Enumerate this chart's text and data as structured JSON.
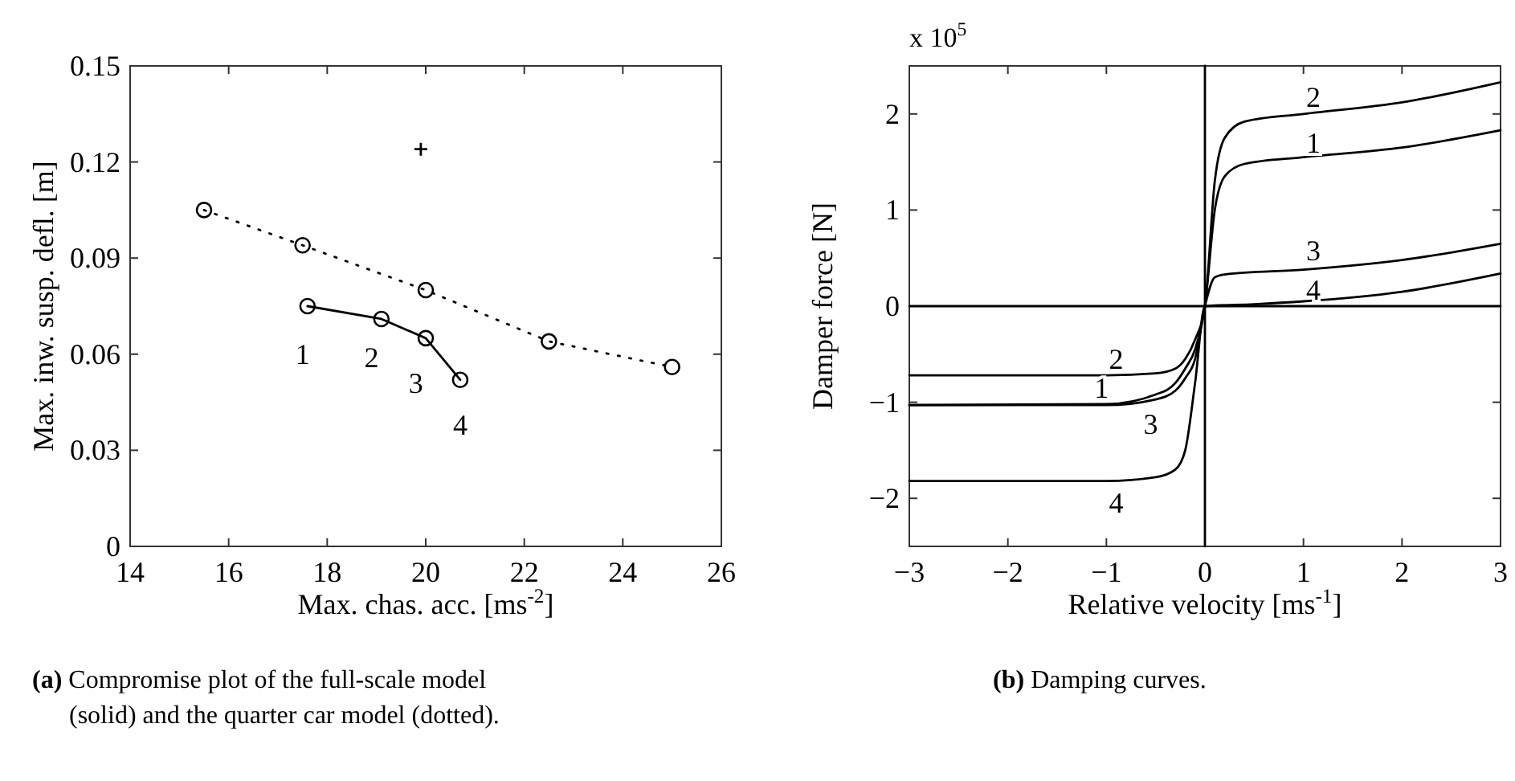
{
  "chart_data": [
    {
      "type": "line",
      "xlabel": "Max. chas. acc. [ms$^{-2}$]",
      "ylabel": "Max. inw. susp. defl. [m]",
      "xlim": [
        14,
        26
      ],
      "xticks": [
        14,
        16,
        18,
        20,
        22,
        24,
        26
      ],
      "ylim": [
        0,
        0.15
      ],
      "yticks": [
        0,
        0.03,
        0.06,
        0.09,
        0.12,
        0.15
      ],
      "grid": false,
      "series": [
        {
          "color": "#000000",
          "line_style": "solid",
          "marker": "circle",
          "x": [
            17.6,
            19.1,
            20,
            20.7
          ],
          "values": [
            0.075,
            0.071,
            0.065,
            0.052
          ]
        },
        {
          "color": "#000000",
          "line_style": "dotted",
          "marker": "circle",
          "x": [
            15.5,
            17.5,
            20,
            22.5,
            25
          ],
          "values": [
            0.105,
            0.094,
            0.08,
            0.064,
            0.056
          ]
        },
        {
          "type": "scatter",
          "color": "#000000",
          "marker": "cross",
          "x": [
            19.9
          ],
          "values": [
            0.124
          ]
        }
      ],
      "annotations": [
        "1",
        "2",
        "3",
        "4",
        "(a) Compromise plot of the full-scale model (solid) and the quarter car model (dotted)."
      ]
    },
    {
      "type": "line",
      "xlabel": "Relative velocity [ms$^{-1}$]",
      "ylabel": "Damper force [N]",
      "xlim": [
        -3,
        3
      ],
      "xticks": [
        {
          "value": -3,
          "label": "−3"
        },
        {
          "value": -2,
          "label": "−2"
        },
        {
          "value": -1,
          "label": "−1"
        },
        0,
        1,
        2,
        3
      ],
      "ylim": [
        -2.5,
        2.5
      ],
      "yticks": [
        {
          "value": -2,
          "label": "−2"
        },
        {
          "value": -1,
          "label": "−1"
        },
        0,
        1,
        2
      ],
      "grid": false,
      "series": [
        {
          "color": "#000000",
          "x": [
            -3,
            -1,
            -0.5,
            -0.3,
            -0.2,
            -0.1,
            0,
            0.1,
            0.2,
            0.4,
            1,
            2,
            3
          ],
          "values": [
            -1.03,
            -1.02,
            -0.92,
            -0.8,
            -0.65,
            -0.45,
            0,
            1.0,
            1.35,
            1.48,
            1.55,
            1.65,
            1.83
          ]
        },
        {
          "color": "#000000",
          "x": [
            -3,
            -1,
            -0.5,
            -0.3,
            -0.2,
            -0.1,
            0,
            0.1,
            0.2,
            0.4,
            1,
            2,
            3
          ],
          "values": [
            -0.72,
            -0.72,
            -0.7,
            -0.65,
            -0.55,
            -0.35,
            0,
            1.3,
            1.75,
            1.92,
            2.0,
            2.12,
            2.33
          ]
        },
        {
          "color": "#000000",
          "x": [
            -3,
            -1,
            -0.5,
            -0.3,
            -0.2,
            -0.1,
            0,
            0.1,
            0.2,
            1,
            2,
            3
          ],
          "values": [
            -1.03,
            -1.03,
            -0.97,
            -0.88,
            -0.75,
            -0.55,
            0,
            0.3,
            0.33,
            0.38,
            0.48,
            0.65
          ]
        },
        {
          "color": "#000000",
          "x": [
            -3,
            -1,
            -0.5,
            -0.3,
            -0.2,
            -0.1,
            0,
            0.5,
            1,
            2,
            3
          ],
          "values": [
            -1.82,
            -1.82,
            -1.78,
            -1.7,
            -1.5,
            -0.8,
            0,
            0.02,
            0.05,
            0.15,
            0.34
          ]
        },
        {
          "color": "#000000",
          "line_style": "solid",
          "x": [
            -3,
            3
          ],
          "values": [
            0,
            0
          ]
        },
        {
          "color": "#000000",
          "line_style": "solid",
          "x": [
            0,
            0
          ],
          "values": [
            -2.5,
            2.5
          ]
        }
      ],
      "annotations": [
        "x 10$^{5}$",
        "2",
        "1",
        "3",
        "4",
        "2",
        "1",
        "3",
        "4",
        "(b) Damping curves."
      ]
    }
  ]
}
